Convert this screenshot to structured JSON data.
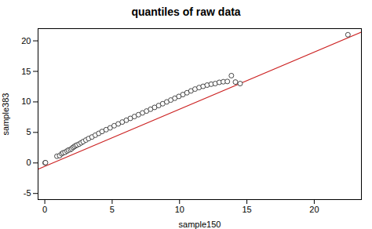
{
  "chart_data": {
    "type": "scatter",
    "title": "quantiles of raw data",
    "xlabel": "sample150",
    "ylabel": "sample383",
    "xlim": [
      -0.5,
      23.5
    ],
    "ylim": [
      -6,
      22
    ],
    "xticks": [
      0,
      5,
      10,
      15,
      20
    ],
    "yticks": [
      -5,
      0,
      5,
      10,
      15,
      20
    ],
    "grid": false,
    "series": [
      {
        "type": "line",
        "color": "#cc2222",
        "line_style": "solid",
        "x": [
          -0.5,
          23.5
        ],
        "values": [
          -1.0175,
          21.4225
        ]
      },
      {
        "type": "scatter",
        "color": "#333333",
        "marker": "open circle",
        "x": [
          0.02,
          0.05,
          0.9,
          1.1,
          1.25,
          1.35,
          1.5,
          1.65,
          1.75,
          1.9,
          2.0,
          2.1,
          2.2,
          2.3,
          2.4,
          2.55,
          2.7,
          2.85,
          3.05,
          3.25,
          3.5,
          3.75,
          4.0,
          4.25,
          4.55,
          4.85,
          5.15,
          5.45,
          5.75,
          6.05,
          6.35,
          6.65,
          6.95,
          7.25,
          7.55,
          7.85,
          8.15,
          8.45,
          8.75,
          9.05,
          9.35,
          9.65,
          9.95,
          10.25,
          10.55,
          10.85,
          11.15,
          11.45,
          11.75,
          12.05,
          12.35,
          12.65,
          12.95,
          13.25,
          13.55,
          13.85,
          14.15,
          14.5,
          22.5
        ],
        "values": [
          0.02,
          0.05,
          1.1,
          1.2,
          1.5,
          1.65,
          1.75,
          1.95,
          2.1,
          2.2,
          2.35,
          2.55,
          2.7,
          2.85,
          2.95,
          3.1,
          3.3,
          3.5,
          3.75,
          4.0,
          4.25,
          4.55,
          4.85,
          5.15,
          5.45,
          5.75,
          6.1,
          6.4,
          6.7,
          7.0,
          7.3,
          7.6,
          7.9,
          8.2,
          8.5,
          8.8,
          9.1,
          9.4,
          9.7,
          10.0,
          10.3,
          10.6,
          10.9,
          11.2,
          11.5,
          11.8,
          12.1,
          12.35,
          12.55,
          12.75,
          12.9,
          13.0,
          13.2,
          13.3,
          13.35,
          14.3,
          13.25,
          13.0,
          21.0
        ]
      }
    ]
  }
}
